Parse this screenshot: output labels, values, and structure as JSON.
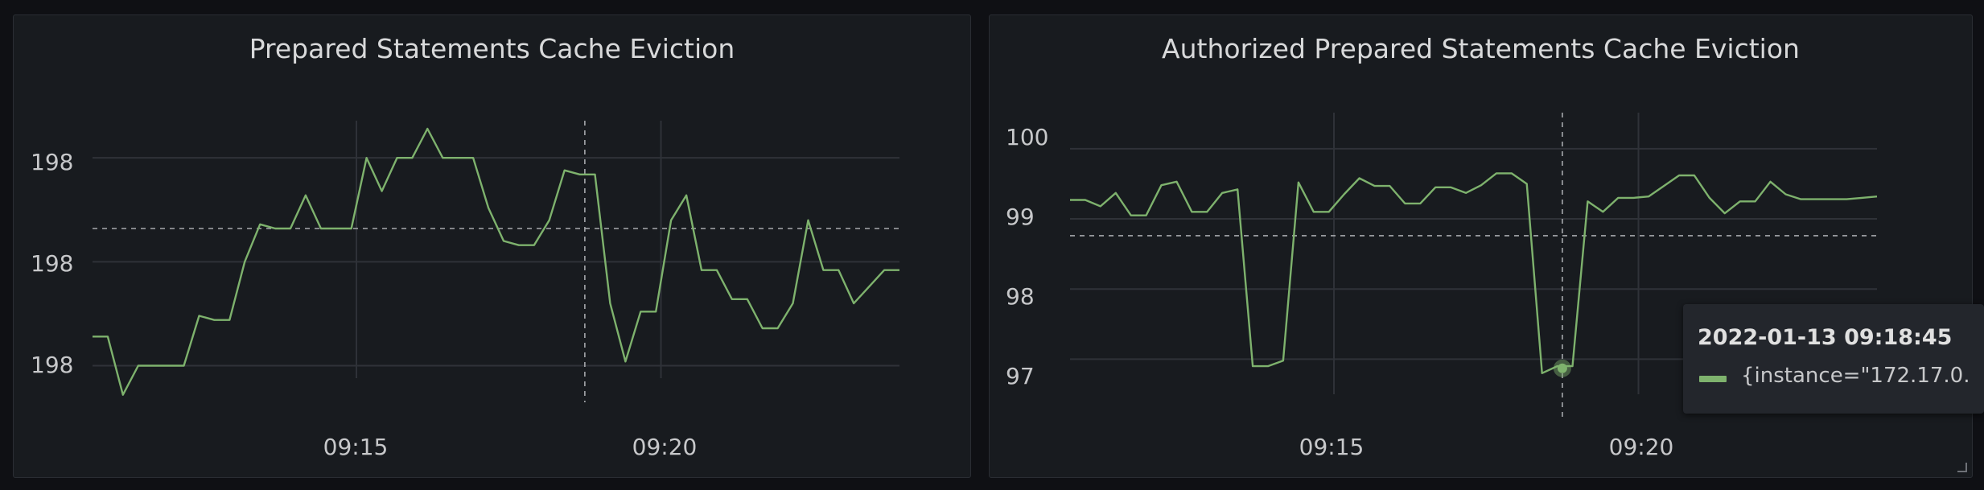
{
  "panels": [
    {
      "title": "Prepared Statements Cache Eviction",
      "y_tick_labels": [
        "198",
        "198",
        "198"
      ]
    },
    {
      "title": "Authorized Prepared Statements Cache Eviction",
      "y_tick_labels": [
        "100",
        "99",
        "98",
        "97"
      ]
    }
  ],
  "tooltip": {
    "time": "2022-01-13 09:18:45",
    "series_label": "{instance=\"172.17.0."
  },
  "colors": {
    "series": "#7eb26d",
    "background": "#181b1f",
    "grid": "#2f3238"
  },
  "chart_data": [
    {
      "type": "line",
      "title": "Prepared Statements Cache Eviction",
      "x_tick_labels": [
        "09:15",
        "09:20"
      ],
      "x": [
        "09:10:40",
        "09:10:55",
        "09:11:10",
        "09:11:25",
        "09:11:40",
        "09:11:55",
        "09:12:10",
        "09:12:25",
        "09:12:40",
        "09:12:55",
        "09:13:10",
        "09:13:25",
        "09:13:40",
        "09:13:55",
        "09:14:10",
        "09:14:25",
        "09:14:40",
        "09:14:55",
        "09:15:10",
        "09:15:25",
        "09:15:40",
        "09:15:55",
        "09:16:10",
        "09:16:25",
        "09:16:40",
        "09:16:55",
        "09:17:10",
        "09:17:25",
        "09:17:40",
        "09:17:55",
        "09:18:10",
        "09:18:25",
        "09:18:40",
        "09:18:55",
        "09:19:10",
        "09:19:25",
        "09:19:40",
        "09:19:55",
        "09:20:10",
        "09:20:25",
        "09:20:40",
        "09:20:55",
        "09:21:10",
        "09:21:25",
        "09:21:40",
        "09:21:55",
        "09:22:10",
        "09:22:25",
        "09:22:40",
        "09:22:55",
        "09:23:10",
        "09:23:25",
        "09:23:40",
        "09:23:55"
      ],
      "series": [
        {
          "values": [
            197.72,
            197.72,
            197.58,
            197.65,
            197.65,
            197.65,
            197.65,
            197.77,
            197.76,
            197.76,
            197.9,
            197.99,
            197.98,
            197.98,
            198.06,
            197.98,
            197.98,
            197.98,
            198.15,
            198.07,
            198.15,
            198.15,
            198.22,
            198.15,
            198.15,
            198.15,
            198.03,
            197.95,
            197.94,
            197.94,
            198.0,
            198.12,
            198.11,
            198.11,
            197.8,
            197.66,
            197.78,
            197.78,
            198.0,
            198.06,
            197.88,
            197.88,
            197.81,
            197.81,
            197.74,
            197.74,
            197.8,
            198.0,
            197.88,
            197.88,
            197.8,
            197.84,
            197.88,
            197.88
          ]
        }
      ],
      "reference_line": 197.98,
      "hover_time": "09:18:45",
      "ylim": [
        197.62,
        198.22
      ],
      "grid": true
    },
    {
      "type": "line",
      "title": "Authorized Prepared Statements Cache Eviction",
      "x_tick_labels": [
        "09:15",
        "09:20"
      ],
      "x": [
        "09:10:40",
        "09:10:55",
        "09:11:10",
        "09:11:25",
        "09:11:40",
        "09:11:55",
        "09:12:10",
        "09:12:25",
        "09:12:40",
        "09:12:55",
        "09:13:10",
        "09:13:25",
        "09:13:40",
        "09:13:55",
        "09:14:10",
        "09:14:25",
        "09:14:40",
        "09:14:55",
        "09:15:10",
        "09:15:25",
        "09:15:40",
        "09:15:55",
        "09:16:10",
        "09:16:25",
        "09:16:40",
        "09:16:55",
        "09:17:10",
        "09:17:25",
        "09:17:40",
        "09:17:55",
        "09:18:10",
        "09:18:25",
        "09:18:40",
        "09:18:55",
        "09:19:10",
        "09:19:25",
        "09:19:40",
        "09:19:55",
        "09:20:10",
        "09:20:25",
        "09:20:40",
        "09:20:55",
        "09:21:10",
        "09:21:25",
        "09:21:40",
        "09:21:55",
        "09:22:10",
        "09:22:25",
        "09:22:40",
        "09:22:55",
        "09:23:10",
        "09:23:25",
        "09:23:40",
        "09:23:55"
      ],
      "series": [
        {
          "values": [
            99.27,
            99.27,
            99.18,
            99.37,
            99.05,
            99.05,
            99.48,
            99.53,
            99.1,
            99.1,
            99.37,
            99.42,
            96.9,
            96.9,
            96.98,
            99.52,
            99.1,
            99.1,
            99.35,
            99.58,
            99.47,
            99.47,
            99.22,
            99.22,
            99.45,
            99.45,
            99.37,
            99.48,
            99.65,
            99.65,
            99.5,
            96.8,
            96.9,
            96.9,
            99.25,
            99.1,
            99.3,
            99.3,
            99.32,
            99.47,
            99.62,
            99.62,
            99.3,
            99.08,
            99.25,
            99.25,
            99.53,
            99.35,
            99.28,
            99.28,
            99.28,
            99.28,
            99.3,
            99.32
          ]
        }
      ],
      "reference_line": 98.76,
      "hover_time": "09:18:45",
      "hover_value": 96.87,
      "ylim": [
        96.5,
        100.4
      ],
      "grid": true
    }
  ]
}
